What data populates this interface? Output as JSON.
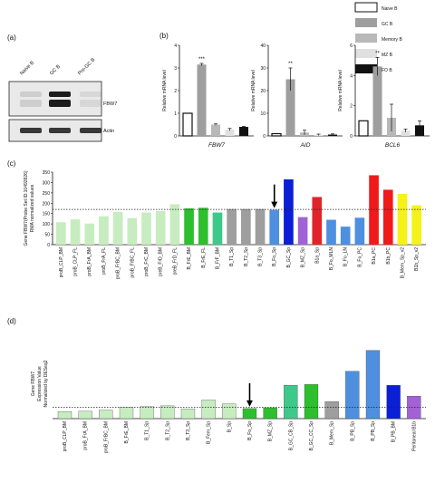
{
  "panels": {
    "a": "(a)",
    "b": "(b)",
    "c": "(c)",
    "d": "(d)"
  },
  "western": {
    "lanes": [
      "Naive B",
      "GC B",
      "Pre-GC B"
    ],
    "bands": [
      "FBW7",
      "Actin"
    ],
    "intensity": {
      "FBW7": [
        0.12,
        0.95,
        0.08
      ],
      "Actin": [
        0.82,
        0.82,
        0.82
      ]
    }
  },
  "legend": [
    {
      "label": "Naive B",
      "color": "#ffffff"
    },
    {
      "label": "GC B",
      "color": "#9e9e9e"
    },
    {
      "label": "Memory B",
      "color": "#b8b8b8"
    },
    {
      "label": "MZ B",
      "color": "#e0e0e0"
    },
    {
      "label": "FO B",
      "color": "#111111"
    }
  ],
  "chart_data": [
    {
      "type": "bar",
      "title": "FBW7",
      "ylabel": "Relative mRNA level",
      "ylim": [
        0,
        4
      ],
      "yticks": [
        "0",
        "1",
        "2",
        "3",
        "4"
      ],
      "categories": [
        "Naive B",
        "GC B",
        "Memory B",
        "MZ B",
        "FO B"
      ],
      "values": [
        1.0,
        3.15,
        0.5,
        0.28,
        0.4
      ],
      "errors": [
        0,
        0.05,
        0.03,
        0.05,
        0.02
      ],
      "significance": [
        {
          "index": 1,
          "mark": "***"
        }
      ]
    },
    {
      "type": "bar",
      "title": "AID",
      "ylabel": "Relative mRNA level",
      "ylim": [
        0,
        40
      ],
      "yticks": [
        "0",
        "10",
        "20",
        "30",
        "40"
      ],
      "categories": [
        "Naive B",
        "GC B",
        "Memory B",
        "MZ B",
        "FO B"
      ],
      "values": [
        1.0,
        25.0,
        1.5,
        0.5,
        0.6
      ],
      "errors": [
        0,
        5.0,
        1.0,
        0.3,
        0.3
      ],
      "significance": [
        {
          "index": 1,
          "mark": "**"
        }
      ]
    },
    {
      "type": "bar",
      "title": "BCL6",
      "ylabel": "Relative mRNA level",
      "ylim": [
        0,
        6
      ],
      "yticks": [
        "0",
        "2",
        "4",
        "6"
      ],
      "categories": [
        "Naive B",
        "GC B",
        "Memory B",
        "MZ B",
        "FO B"
      ],
      "values": [
        1.0,
        4.6,
        1.2,
        0.35,
        0.7
      ],
      "errors": [
        0,
        0.6,
        0.9,
        0.1,
        0.3
      ],
      "significance": [
        {
          "index": 1,
          "mark": "**"
        }
      ]
    },
    {
      "type": "bar",
      "ylabel_lines": [
        "Gene FBW7(Probe Set ID:10492826)",
        "RMA normalized values"
      ],
      "ylim": [
        0,
        350
      ],
      "yticks": [
        "0",
        "50",
        "100",
        "150",
        "200",
        "250",
        "300",
        "350"
      ],
      "reference_line": 170,
      "arrow_at": "B_Fo_Sp",
      "categories": [
        "proB_CLP_BM",
        "proB_CLP_FL",
        "proB_FrA_BM",
        "proB_FrA_FL",
        "proB_FrBC_BM",
        "proB_FrBC_FL",
        "proB_FrC_BM",
        "preB_FrD_BM",
        "preB_FrD_FL",
        "B_FrE_BM",
        "B_FrE_FL",
        "B_FrF_BM",
        "B_T1_Sp",
        "B_T2_Sp",
        "B_T3_Sp",
        "B_Fo_Sp",
        "B_GC_Sp",
        "B_MZ_Sp",
        "B1a_Sp",
        "B_Fo_MLN",
        "B_Fo_LN",
        "B_Fo_PC",
        "B1a_PC",
        "B1b_PC",
        "B_Mem_Sp_v2",
        "B1b_Sp_v2"
      ],
      "values": [
        108,
        122,
        102,
        137,
        158,
        128,
        155,
        162,
        195,
        175,
        178,
        155,
        172,
        172,
        172,
        168,
        315,
        133,
        230,
        120,
        87,
        130,
        335,
        265,
        245,
        190
      ],
      "colors": [
        "#c7ecc0",
        "#c7ecc0",
        "#c7ecc0",
        "#c7ecc0",
        "#c7ecc0",
        "#c7ecc0",
        "#c7ecc0",
        "#c7ecc0",
        "#c7ecc0",
        "#2ebf2e",
        "#2ebf2e",
        "#3ec98a",
        "#9e9e9e",
        "#9e9e9e",
        "#9e9e9e",
        "#4f8fe0",
        "#0a1fd6",
        "#a262d6",
        "#e0242a",
        "#4f8fe0",
        "#4f8fe0",
        "#4f8fe0",
        "#f01a1a",
        "#f01a1a",
        "#f5f21a",
        "#f5f21a"
      ]
    },
    {
      "type": "bar",
      "ylabel_lines": [
        "Gene FBW7",
        "Expression Value",
        "Normalized by DESeq2"
      ],
      "ylim": [
        0,
        900
      ],
      "reference_line": 145,
      "arrow_at": "B_Fo_Sp",
      "categories": [
        "proB_CLP_BM",
        "proB_FrA_BM",
        "proB_FrBC_BM",
        "B_FrE_BM",
        "B_T1_Sp",
        "B_T2_Sp",
        "B_T3_Sp",
        "B_Fem_Sp",
        "B_Sp",
        "B_Fo_Sp",
        "B_MZ_Sp",
        "B_GC_CB_Sp",
        "B_GC_CC_Sp",
        "B_Mem_Sp",
        "B_PB_Sp",
        "B_PB_Sp",
        "B_PB_BM",
        "Peritoneal B1b"
      ],
      "values": [
        90,
        95,
        110,
        145,
        155,
        165,
        125,
        240,
        190,
        130,
        140,
        430,
        440,
        220,
        610,
        880,
        430,
        290
      ],
      "colors": [
        "#c7ecc0",
        "#c7ecc0",
        "#c7ecc0",
        "#c7ecc0",
        "#c7ecc0",
        "#c7ecc0",
        "#c7ecc0",
        "#c7ecc0",
        "#c7ecc0",
        "#2ebf2e",
        "#2ebf2e",
        "#3ec98a",
        "#2ebf2e",
        "#9e9e9e",
        "#4f8fe0",
        "#4f8fe0",
        "#0a1fd6",
        "#a262d6"
      ]
    }
  ]
}
